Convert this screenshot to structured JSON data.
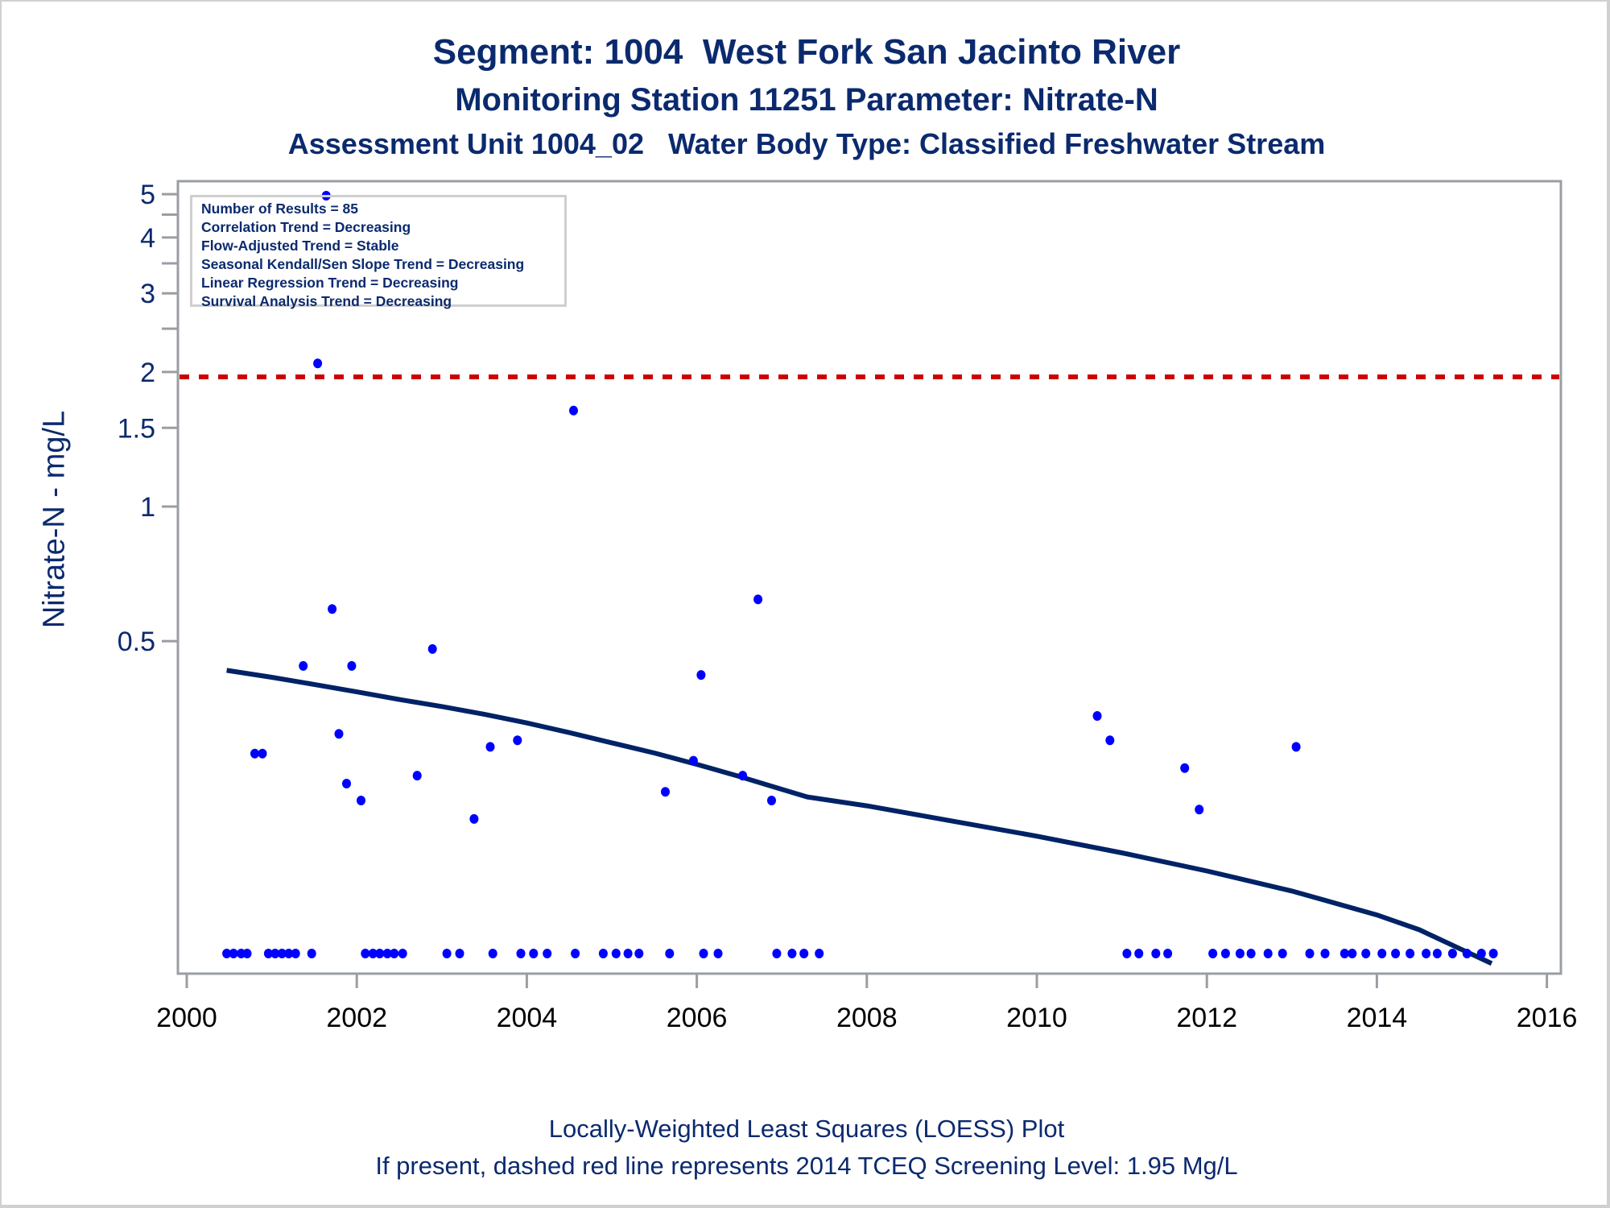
{
  "titles": {
    "line1": "Segment: 1004  West Fork San Jacinto River",
    "line2": "Monitoring Station 11251 Parameter: Nitrate-N",
    "line3": "Assessment Unit 1004_02   Water Body Type: Classified Freshwater Stream"
  },
  "footnotes": {
    "line1": "Locally-Weighted Least Squares (LOESS) Plot",
    "line2": "If present, dashed red line represents 2014 TCEQ Screening Level: 1.95 Mg/L"
  },
  "legend": {
    "items": [
      "Number of Results = 85",
      "Correlation Trend = Decreasing",
      "Flow-Adjusted Trend = Stable",
      "Seasonal Kendall/Sen Slope Trend = Decreasing",
      "Linear Regression Trend = Decreasing",
      "Survival Analysis Trend = Decreasing"
    ]
  },
  "colors": {
    "points": "#0000ff",
    "loess": "#002266",
    "screening_line": "#cc0000",
    "axis": "#9a9ea3",
    "text": "#0b2a6e"
  },
  "chart_data": {
    "type": "scatter",
    "title": "Segment: 1004  West Fork San Jacinto River",
    "xlabel": "",
    "ylabel": "Nitrate-N - mg/L",
    "y_scale": "log",
    "xlim": [
      2000,
      2016
    ],
    "ylim": [
      0.09,
      5.35
    ],
    "x_ticks": [
      2000,
      2002,
      2004,
      2006,
      2008,
      2010,
      2012,
      2014,
      2016
    ],
    "y_ticks": [
      {
        "value": 5,
        "label": "5"
      },
      {
        "value": 4,
        "label": "4"
      },
      {
        "value": 3,
        "label": "3"
      },
      {
        "value": 2,
        "label": "2"
      },
      {
        "value": 1.5,
        "label": "1.5"
      },
      {
        "value": 1,
        "label": "1"
      },
      {
        "value": 0.5,
        "label": "0.5"
      }
    ],
    "y_minor_ticks": [
      4.5,
      3.5,
      2.5
    ],
    "grid": false,
    "legend_position": "top-left",
    "screening_level": {
      "value": 1.95,
      "label": "2014 TCEQ Screening Level",
      "style": "dashed"
    },
    "series": [
      {
        "name": "Nitrate-N results",
        "kind": "points",
        "points": [
          [
            2001.64,
            4.96
          ],
          [
            2001.54,
            2.09
          ],
          [
            2004.55,
            1.64
          ],
          [
            2001.71,
            0.59
          ],
          [
            2006.72,
            0.62
          ],
          [
            2002.89,
            0.48
          ],
          [
            2001.37,
            0.44
          ],
          [
            2001.94,
            0.44
          ],
          [
            2006.05,
            0.42
          ],
          [
            2010.71,
            0.34
          ],
          [
            2001.79,
            0.31
          ],
          [
            2003.89,
            0.3
          ],
          [
            2010.86,
            0.3
          ],
          [
            2003.57,
            0.29
          ],
          [
            2013.05,
            0.29
          ],
          [
            2000.8,
            0.28
          ],
          [
            2000.89,
            0.28
          ],
          [
            2005.96,
            0.27
          ],
          [
            2011.74,
            0.26
          ],
          [
            2006.54,
            0.25
          ],
          [
            2002.71,
            0.25
          ],
          [
            2001.88,
            0.24
          ],
          [
            2005.63,
            0.23
          ],
          [
            2006.88,
            0.22
          ],
          [
            2002.05,
            0.22
          ],
          [
            2011.91,
            0.21
          ],
          [
            2003.38,
            0.2
          ],
          [
            2000.47,
            0.1
          ],
          [
            2000.55,
            0.1
          ],
          [
            2000.64,
            0.1
          ],
          [
            2000.71,
            0.1
          ],
          [
            2000.96,
            0.1
          ],
          [
            2001.04,
            0.1
          ],
          [
            2001.12,
            0.1
          ],
          [
            2001.2,
            0.1
          ],
          [
            2001.28,
            0.1
          ],
          [
            2001.47,
            0.1
          ],
          [
            2002.1,
            0.1
          ],
          [
            2002.19,
            0.1
          ],
          [
            2002.27,
            0.1
          ],
          [
            2002.36,
            0.1
          ],
          [
            2002.44,
            0.1
          ],
          [
            2002.54,
            0.1
          ],
          [
            2003.06,
            0.1
          ],
          [
            2003.21,
            0.1
          ],
          [
            2003.6,
            0.1
          ],
          [
            2003.93,
            0.1
          ],
          [
            2004.08,
            0.1
          ],
          [
            2004.24,
            0.1
          ],
          [
            2004.57,
            0.1
          ],
          [
            2004.9,
            0.1
          ],
          [
            2005.05,
            0.1
          ],
          [
            2005.19,
            0.1
          ],
          [
            2005.32,
            0.1
          ],
          [
            2005.68,
            0.1
          ],
          [
            2006.08,
            0.1
          ],
          [
            2006.25,
            0.1
          ],
          [
            2006.94,
            0.1
          ],
          [
            2007.12,
            0.1
          ],
          [
            2007.26,
            0.1
          ],
          [
            2007.44,
            0.1
          ],
          [
            2011.06,
            0.1
          ],
          [
            2011.2,
            0.1
          ],
          [
            2011.4,
            0.1
          ],
          [
            2011.54,
            0.1
          ],
          [
            2012.07,
            0.1
          ],
          [
            2012.22,
            0.1
          ],
          [
            2012.39,
            0.1
          ],
          [
            2012.52,
            0.1
          ],
          [
            2012.72,
            0.1
          ],
          [
            2012.89,
            0.1
          ],
          [
            2013.21,
            0.1
          ],
          [
            2013.39,
            0.1
          ],
          [
            2013.62,
            0.1
          ],
          [
            2013.71,
            0.1
          ],
          [
            2013.87,
            0.1
          ],
          [
            2014.06,
            0.1
          ],
          [
            2014.22,
            0.1
          ],
          [
            2014.39,
            0.1
          ],
          [
            2014.58,
            0.1
          ],
          [
            2014.71,
            0.1
          ],
          [
            2014.89,
            0.1
          ],
          [
            2015.06,
            0.1
          ],
          [
            2015.23,
            0.1
          ],
          [
            2015.37,
            0.1
          ]
        ]
      },
      {
        "name": "LOESS fit",
        "kind": "line",
        "points": [
          [
            2000.47,
            0.43
          ],
          [
            2001.0,
            0.415
          ],
          [
            2001.5,
            0.4
          ],
          [
            2002.0,
            0.385
          ],
          [
            2002.5,
            0.37
          ],
          [
            2003.0,
            0.357
          ],
          [
            2003.5,
            0.343
          ],
          [
            2004.0,
            0.328
          ],
          [
            2004.5,
            0.312
          ],
          [
            2005.0,
            0.296
          ],
          [
            2005.5,
            0.281
          ],
          [
            2006.0,
            0.265
          ],
          [
            2006.5,
            0.249
          ],
          [
            2007.0,
            0.233
          ],
          [
            2007.3,
            0.224
          ],
          [
            2008.0,
            0.214
          ],
          [
            2009.0,
            0.198
          ],
          [
            2010.0,
            0.183
          ],
          [
            2011.0,
            0.168
          ],
          [
            2012.0,
            0.153
          ],
          [
            2013.0,
            0.138
          ],
          [
            2014.0,
            0.122
          ],
          [
            2014.5,
            0.113
          ],
          [
            2015.0,
            0.102
          ],
          [
            2015.35,
            0.095
          ]
        ]
      }
    ]
  }
}
